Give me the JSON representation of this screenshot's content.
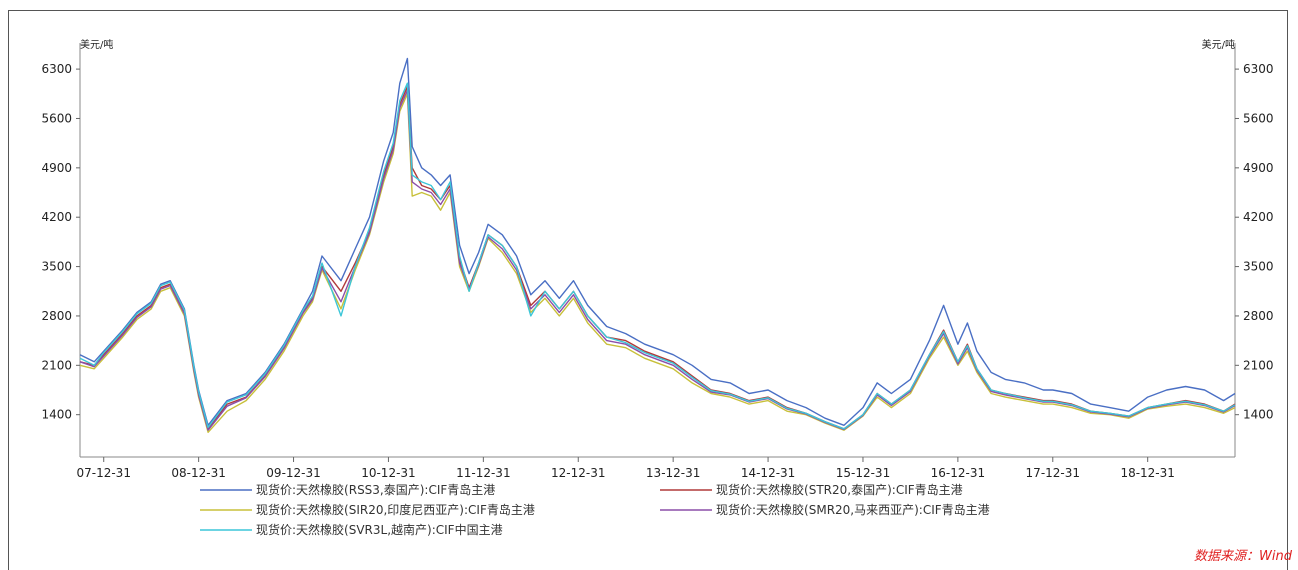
{
  "chart_data": {
    "type": "line",
    "unit_left": "美元/吨",
    "unit_right": "美元/吨",
    "source": "数据来源：Wind",
    "ylim": [
      800,
      6500
    ],
    "yticks": [
      1400,
      2100,
      2800,
      3500,
      4200,
      4900,
      5600,
      6300
    ],
    "ytick_labels": [
      "1400",
      "2100",
      "2800",
      "3500",
      "4200",
      "4900",
      "5600",
      "6300"
    ],
    "xlim": [
      2007.75,
      2019.92
    ],
    "xticks": [
      2008.0,
      2009.0,
      2010.0,
      2011.0,
      2012.0,
      2013.0,
      2014.0,
      2015.0,
      2016.0,
      2017.0,
      2018.0,
      2019.0
    ],
    "xtick_labels": [
      "07-12-31",
      "08-12-31",
      "09-12-31",
      "10-12-31",
      "11-12-31",
      "12-12-31",
      "13-12-31",
      "14-12-31",
      "15-12-31",
      "16-12-31",
      "17-12-31",
      "18-12-31"
    ],
    "legend_position": "bottom",
    "grid": false,
    "series": [
      {
        "name": "现货价:天然橡胶(RSS3,泰国产):CIF青岛主港",
        "color": "#4a6fc4",
        "x": [
          2007.75,
          2007.9,
          2008.0,
          2008.2,
          2008.35,
          2008.5,
          2008.6,
          2008.7,
          2008.85,
          2008.95,
          2009.0,
          2009.1,
          2009.3,
          2009.5,
          2009.7,
          2009.9,
          2010.1,
          2010.2,
          2010.3,
          2010.5,
          2010.65,
          2010.8,
          2010.95,
          2011.05,
          2011.12,
          2011.2,
          2011.25,
          2011.35,
          2011.45,
          2011.55,
          2011.65,
          2011.75,
          2011.85,
          2011.95,
          2012.05,
          2012.2,
          2012.35,
          2012.5,
          2012.65,
          2012.8,
          2012.95,
          2013.1,
          2013.3,
          2013.5,
          2013.7,
          2013.9,
          2014.0,
          2014.2,
          2014.4,
          2014.6,
          2014.8,
          2015.0,
          2015.2,
          2015.4,
          2015.6,
          2015.8,
          2016.0,
          2016.15,
          2016.3,
          2016.5,
          2016.7,
          2016.85,
          2017.0,
          2017.1,
          2017.2,
          2017.35,
          2017.5,
          2017.7,
          2017.9,
          2018.0,
          2018.2,
          2018.4,
          2018.6,
          2018.8,
          2019.0,
          2019.2,
          2019.4,
          2019.6,
          2019.8,
          2019.92
        ],
        "y": [
          2250,
          2150,
          2300,
          2600,
          2850,
          3000,
          3250,
          3300,
          2900,
          2100,
          1750,
          1250,
          1600,
          1700,
          2000,
          2400,
          2900,
          3150,
          3650,
          3300,
          3750,
          4200,
          5000,
          5400,
          6100,
          6450,
          5200,
          4900,
          4800,
          4650,
          4800,
          3800,
          3400,
          3700,
          4100,
          3950,
          3650,
          3100,
          3300,
          3050,
          3300,
          2950,
          2650,
          2550,
          2400,
          2300,
          2250,
          2100,
          1900,
          1850,
          1700,
          1750,
          1600,
          1500,
          1350,
          1250,
          1500,
          1850,
          1700,
          1900,
          2450,
          2950,
          2400,
          2700,
          2300,
          2000,
          1900,
          1850,
          1750,
          1750,
          1700,
          1550,
          1500,
          1450,
          1650,
          1750,
          1800,
          1750,
          1600,
          1700
        ]
      },
      {
        "name": "现货价:天然橡胶(STR20,泰国产):CIF青岛主港",
        "color": "#b03a3a",
        "x": [
          2007.75,
          2007.9,
          2008.0,
          2008.2,
          2008.35,
          2008.5,
          2008.6,
          2008.7,
          2008.85,
          2008.95,
          2009.0,
          2009.1,
          2009.3,
          2009.5,
          2009.7,
          2009.9,
          2010.1,
          2010.2,
          2010.3,
          2010.5,
          2010.65,
          2010.8,
          2010.95,
          2011.05,
          2011.12,
          2011.2,
          2011.25,
          2011.35,
          2011.45,
          2011.55,
          2011.65,
          2011.75,
          2011.85,
          2011.95,
          2012.05,
          2012.2,
          2012.35,
          2012.5,
          2012.65,
          2012.8,
          2012.95,
          2013.1,
          2013.3,
          2013.5,
          2013.7,
          2013.9,
          2014.0,
          2014.2,
          2014.4,
          2014.6,
          2014.8,
          2015.0,
          2015.2,
          2015.4,
          2015.6,
          2015.8,
          2016.0,
          2016.15,
          2016.3,
          2016.5,
          2016.7,
          2016.85,
          2017.0,
          2017.1,
          2017.2,
          2017.35,
          2017.5,
          2017.7,
          2017.9,
          2018.0,
          2018.2,
          2018.4,
          2018.6,
          2018.8,
          2019.0,
          2019.2,
          2019.4,
          2019.6,
          2019.8,
          2019.92
        ],
        "y": [
          2150,
          2100,
          2250,
          2550,
          2800,
          2950,
          3200,
          3250,
          2850,
          2050,
          1700,
          1200,
          1550,
          1650,
          1950,
          2350,
          2850,
          3050,
          3500,
          3150,
          3550,
          4000,
          4800,
          5200,
          5800,
          6050,
          4900,
          4650,
          4600,
          4450,
          4650,
          3600,
          3200,
          3550,
          3950,
          3800,
          3500,
          2950,
          3150,
          2900,
          3150,
          2800,
          2500,
          2450,
          2300,
          2200,
          2150,
          1950,
          1750,
          1700,
          1600,
          1650,
          1500,
          1420,
          1300,
          1200,
          1400,
          1700,
          1550,
          1750,
          2250,
          2600,
          2150,
          2400,
          2050,
          1750,
          1700,
          1650,
          1600,
          1600,
          1550,
          1450,
          1420,
          1380,
          1500,
          1550,
          1600,
          1550,
          1450,
          1550
        ]
      },
      {
        "name": "现货价:天然橡胶(SIR20,印度尼西亚产):CIF青岛主港",
        "color": "#c8c03a",
        "x": [
          2007.75,
          2007.9,
          2008.0,
          2008.2,
          2008.35,
          2008.5,
          2008.6,
          2008.7,
          2008.85,
          2008.95,
          2009.0,
          2009.1,
          2009.3,
          2009.5,
          2009.7,
          2009.9,
          2010.1,
          2010.2,
          2010.3,
          2010.5,
          2010.65,
          2010.8,
          2010.95,
          2011.05,
          2011.12,
          2011.2,
          2011.25,
          2011.35,
          2011.45,
          2011.55,
          2011.65,
          2011.75,
          2011.85,
          2011.95,
          2012.05,
          2012.2,
          2012.35,
          2012.5,
          2012.65,
          2012.8,
          2012.95,
          2013.1,
          2013.3,
          2013.5,
          2013.7,
          2013.9,
          2014.0,
          2014.2,
          2014.4,
          2014.6,
          2014.8,
          2015.0,
          2015.2,
          2015.4,
          2015.6,
          2015.8,
          2016.0,
          2016.15,
          2016.3,
          2016.5,
          2016.7,
          2016.85,
          2017.0,
          2017.1,
          2017.2,
          2017.35,
          2017.5,
          2017.7,
          2017.9,
          2018.0,
          2018.2,
          2018.4,
          2018.6,
          2018.8,
          2019.0,
          2019.2,
          2019.4,
          2019.6,
          2019.8,
          2019.92
        ],
        "y": [
          2100,
          2050,
          2200,
          2500,
          2750,
          2900,
          3150,
          3200,
          2800,
          2000,
          1650,
          1150,
          1450,
          1600,
          1900,
          2300,
          2800,
          3000,
          3450,
          2900,
          3450,
          3950,
          4700,
          5100,
          5700,
          5950,
          4500,
          4550,
          4500,
          4300,
          4550,
          3500,
          3150,
          3500,
          3900,
          3700,
          3400,
          2850,
          3050,
          2800,
          3050,
          2700,
          2400,
          2350,
          2200,
          2100,
          2050,
          1850,
          1700,
          1650,
          1550,
          1600,
          1450,
          1400,
          1280,
          1180,
          1380,
          1650,
          1500,
          1700,
          2200,
          2500,
          2100,
          2300,
          2000,
          1700,
          1650,
          1600,
          1550,
          1550,
          1500,
          1420,
          1400,
          1350,
          1480,
          1520,
          1550,
          1500,
          1420,
          1500
        ]
      },
      {
        "name": "现货价:天然橡胶(SMR20,马来西亚产):CIF青岛主港",
        "color": "#8c4fa8",
        "x": [
          2007.75,
          2007.9,
          2008.0,
          2008.2,
          2008.35,
          2008.5,
          2008.6,
          2008.7,
          2008.85,
          2008.95,
          2009.0,
          2009.1,
          2009.3,
          2009.5,
          2009.7,
          2009.9,
          2010.1,
          2010.2,
          2010.3,
          2010.5,
          2010.65,
          2010.8,
          2010.95,
          2011.05,
          2011.12,
          2011.2,
          2011.25,
          2011.35,
          2011.45,
          2011.55,
          2011.65,
          2011.75,
          2011.85,
          2011.95,
          2012.05,
          2012.2,
          2012.35,
          2012.5,
          2012.65,
          2012.8,
          2012.95,
          2013.1,
          2013.3,
          2013.5,
          2013.7,
          2013.9,
          2014.0,
          2014.2,
          2014.4,
          2014.6,
          2014.8,
          2015.0,
          2015.2,
          2015.4,
          2015.6,
          2015.8,
          2016.0,
          2016.15,
          2016.3,
          2016.5,
          2016.7,
          2016.85,
          2017.0,
          2017.1,
          2017.2,
          2017.35,
          2017.5,
          2017.7,
          2017.9,
          2018.0,
          2018.2,
          2018.4,
          2018.6,
          2018.8,
          2019.0,
          2019.2,
          2019.4,
          2019.6,
          2019.8,
          2019.92
        ],
        "y": [
          2150,
          2080,
          2230,
          2530,
          2780,
          2930,
          3180,
          3230,
          2830,
          2030,
          1680,
          1180,
          1520,
          1640,
          1940,
          2340,
          2840,
          3030,
          3480,
          3000,
          3500,
          3980,
          4750,
          5150,
          5750,
          6000,
          4700,
          4600,
          4550,
          4380,
          4600,
          3550,
          3180,
          3520,
          3920,
          3750,
          3450,
          2900,
          3100,
          2850,
          3100,
          2750,
          2450,
          2400,
          2250,
          2150,
          2100,
          1900,
          1720,
          1680,
          1580,
          1630,
          1480,
          1410,
          1290,
          1190,
          1390,
          1680,
          1530,
          1730,
          2230,
          2550,
          2120,
          2350,
          2030,
          1730,
          1680,
          1630,
          1580,
          1580,
          1530,
          1440,
          1410,
          1370,
          1490,
          1540,
          1580,
          1530,
          1440,
          1530
        ]
      },
      {
        "name": "现货价:天然橡胶(SVR3L,越南产):CIF中国主港",
        "color": "#3cc6d8",
        "x": [
          2007.75,
          2007.9,
          2008.0,
          2008.2,
          2008.35,
          2008.5,
          2008.6,
          2008.7,
          2008.85,
          2008.95,
          2009.0,
          2009.1,
          2009.3,
          2009.5,
          2009.7,
          2009.9,
          2010.1,
          2010.2,
          2010.3,
          2010.5,
          2010.65,
          2010.8,
          2010.95,
          2011.05,
          2011.12,
          2011.2,
          2011.25,
          2011.35,
          2011.45,
          2011.55,
          2011.65,
          2011.75,
          2011.85,
          2011.95,
          2012.05,
          2012.2,
          2012.35,
          2012.5,
          2012.65,
          2012.8,
          2012.95,
          2013.1,
          2013.3,
          2013.5,
          2013.7,
          2013.9,
          2014.0,
          2014.2,
          2014.4,
          2014.6,
          2014.8,
          2015.0,
          2015.2,
          2015.4,
          2015.6,
          2015.8,
          2016.0,
          2016.15,
          2016.3,
          2016.5,
          2016.7,
          2016.85,
          2017.0,
          2017.1,
          2017.2,
          2017.35,
          2017.5,
          2017.7,
          2017.9,
          2018.0,
          2018.2,
          2018.4,
          2018.6,
          2018.8,
          2019.0,
          2019.2,
          2019.4,
          2019.6,
          2019.8,
          2019.92
        ],
        "y": [
          2200,
          2100,
          2280,
          2580,
          2830,
          2980,
          3230,
          3280,
          2880,
          2080,
          1730,
          1220,
          1580,
          1680,
          1980,
          2380,
          2880,
          3080,
          3550,
          2800,
          3500,
          4050,
          4850,
          5250,
          5850,
          6100,
          4800,
          4700,
          4650,
          4450,
          4700,
          3650,
          3150,
          3550,
          3950,
          3800,
          3500,
          2800,
          3150,
          2900,
          3150,
          2800,
          2500,
          2420,
          2280,
          2180,
          2130,
          1930,
          1740,
          1690,
          1590,
          1640,
          1490,
          1420,
          1300,
          1200,
          1400,
          1700,
          1550,
          1750,
          2250,
          2580,
          2150,
          2380,
          2050,
          1750,
          1700,
          1640,
          1590,
          1590,
          1540,
          1450,
          1420,
          1380,
          1500,
          1550,
          1590,
          1540,
          1450,
          1540
        ]
      }
    ]
  }
}
